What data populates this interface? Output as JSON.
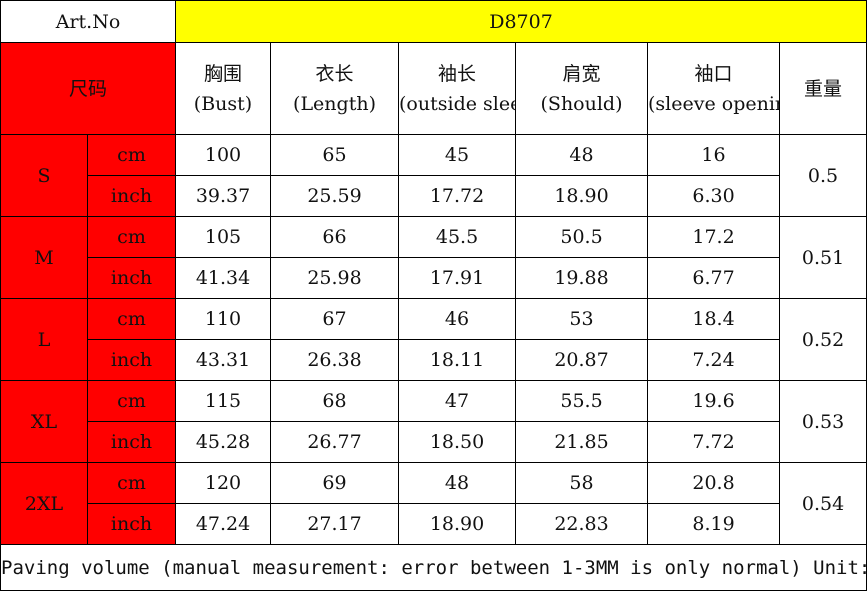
{
  "art_no_label": "Art.No",
  "art_no_value": "D8707",
  "size_label": "尺码",
  "columns": [
    {
      "cn": "胸围",
      "en": "(Bust)"
    },
    {
      "cn": "衣长",
      "en": "(Length)"
    },
    {
      "cn": "袖长",
      "en": "(outside sleeve)"
    },
    {
      "cn": "肩宽",
      "en": "(Should)"
    },
    {
      "cn": "袖口",
      "en": "(sleeve opening"
    }
  ],
  "weight_label": "重量",
  "sizes": [
    {
      "size": "S",
      "cm_label": "cm",
      "inch_label": "inch",
      "cm": [
        "100",
        "65",
        "45",
        "48",
        "16"
      ],
      "inch": [
        "39.37",
        "25.59",
        "17.72",
        "18.90",
        "6.30"
      ],
      "weight": "0.5"
    },
    {
      "size": "M",
      "cm_label": "cm",
      "inch_label": "inch",
      "cm": [
        "105",
        "66",
        "45.5",
        "50.5",
        "17.2"
      ],
      "inch": [
        "41.34",
        "25.98",
        "17.91",
        "19.88",
        "6.77"
      ],
      "weight": "0.51"
    },
    {
      "size": "L",
      "cm_label": "cm",
      "inch_label": "inch",
      "cm": [
        "110",
        "67",
        "46",
        "53",
        "18.4"
      ],
      "inch": [
        "43.31",
        "26.38",
        "18.11",
        "20.87",
        "7.24"
      ],
      "weight": "0.52"
    },
    {
      "size": "XL",
      "cm_label": "cm",
      "inch_label": "inch",
      "cm": [
        "115",
        "68",
        "47",
        "55.5",
        "19.6"
      ],
      "inch": [
        "45.28",
        "26.77",
        "18.50",
        "21.85",
        "7.72"
      ],
      "weight": "0.53"
    },
    {
      "size": "2XL",
      "cm_label": "cm",
      "inch_label": "inch",
      "cm": [
        "120",
        "69",
        "48",
        "58",
        "20.8"
      ],
      "inch": [
        "47.24",
        "27.17",
        "18.90",
        "22.83",
        "8.19"
      ],
      "weight": "0.54"
    }
  ],
  "footer_note": "Paving volume (manual measurement: error between 1-3MM is only normal) Unit: CM weight: KG)",
  "colors": {
    "size_column": "#ff0000",
    "article_header": "#ffff00"
  }
}
